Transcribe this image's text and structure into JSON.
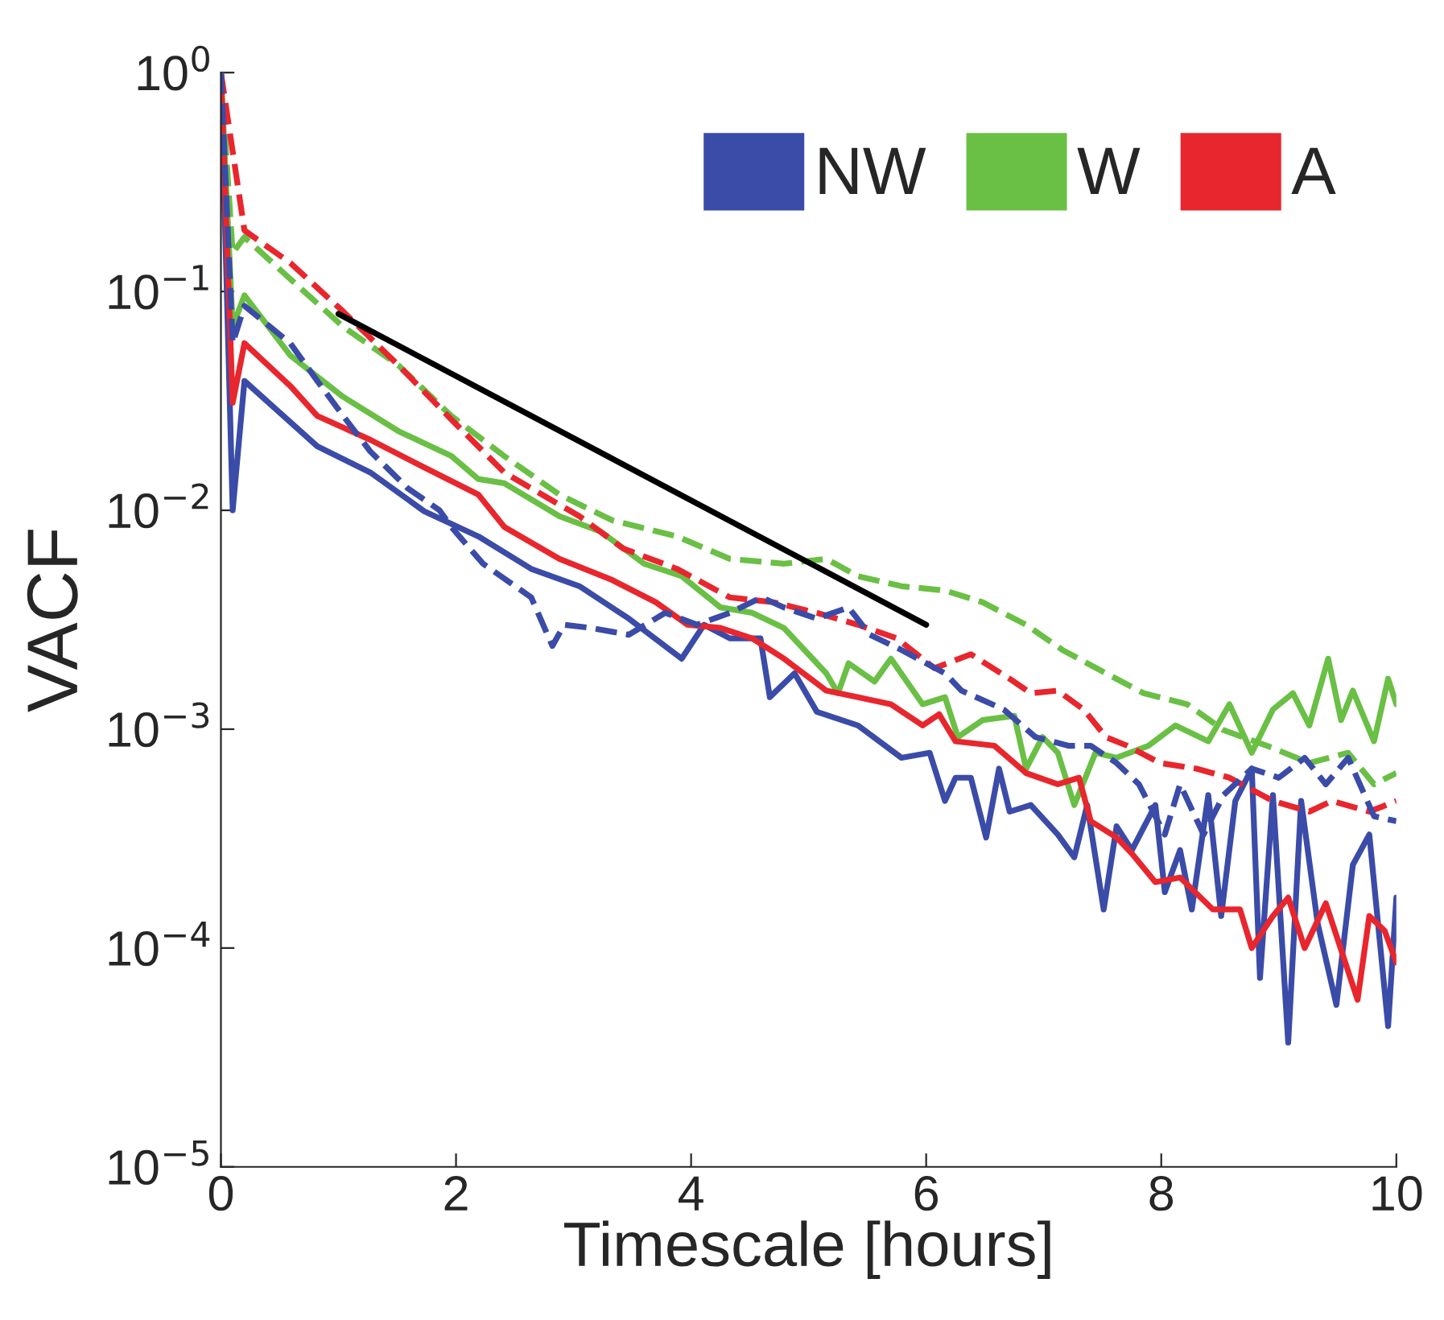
{
  "chart_data": {
    "type": "line",
    "xlabel": "Timescale [hours]",
    "ylabel": "VACF",
    "log": "y",
    "xlim": [
      0,
      10
    ],
    "xticks": [
      0,
      2,
      4,
      6,
      8,
      10
    ],
    "ylim": [
      1e-05,
      1
    ],
    "yticks": [
      {
        "value": 1e-05,
        "label": "10$^{−5}$"
      },
      {
        "value": 0.0001,
        "label": "10$^{−4}$"
      },
      {
        "value": 0.001,
        "label": "10$^{−3}$"
      },
      {
        "value": 0.01,
        "label": "10$^{−2}$"
      },
      {
        "value": 0.1,
        "label": "10$^{−1}$"
      },
      {
        "value": 1,
        "label": "10$^{0}$"
      }
    ],
    "grid": false,
    "legend": "top right",
    "series": [
      {
        "name": "NW",
        "color": "#3b4ba8",
        "line_style": "solid",
        "x": [
          0,
          0.1,
          0.2,
          0.82,
          1.27,
          1.73,
          2.19,
          2.64,
          3.05,
          3.47,
          3.92,
          4.11,
          4.33,
          4.59,
          4.67,
          4.88,
          5.07,
          5.42,
          5.79,
          6.03,
          6.16,
          6.25,
          6.38,
          6.51,
          6.62,
          6.71,
          6.89,
          7.12,
          7.26,
          7.37,
          7.51,
          7.62,
          7.75,
          7.95,
          8.03,
          8.16,
          8.26,
          8.4,
          8.51,
          8.63,
          8.77,
          8.84,
          8.95,
          9.08,
          9.19,
          9.33,
          9.49,
          9.63,
          9.77,
          9.93,
          10.0
        ],
        "values": [
          1,
          0.01,
          0.039,
          0.0196,
          0.0149,
          0.0099,
          0.0076,
          0.0054,
          0.0045,
          0.0032,
          0.0021,
          0.003,
          0.0026,
          0.0026,
          0.0014,
          0.0018,
          0.0012,
          0.00104,
          0.00074,
          0.00078,
          0.00047,
          0.0006,
          0.0006,
          0.00032,
          0.00066,
          0.00042,
          0.00045,
          0.00033,
          0.00026,
          0.00045,
          0.00015,
          0.00036,
          0.00028,
          0.00045,
          0.00018,
          0.00028,
          0.00015,
          0.0005,
          0.00014,
          0.00047,
          0.00066,
          7.3e-05,
          0.0005,
          3.7e-05,
          0.00047,
          0.00013,
          5.5e-05,
          0.00024,
          0.00033,
          4.4e-05,
          0.00017
        ]
      },
      {
        "name": "W",
        "color": "#6abf45",
        "line_style": "solid",
        "x": [
          0,
          0.1,
          0.2,
          0.59,
          1.04,
          1.51,
          1.96,
          2.19,
          2.41,
          2.88,
          3.23,
          3.6,
          3.92,
          4.25,
          4.52,
          4.79,
          5.15,
          5.25,
          5.34,
          5.56,
          5.7,
          5.97,
          6.16,
          6.27,
          6.48,
          6.75,
          6.85,
          6.99,
          7.12,
          7.26,
          7.44,
          7.62,
          7.89,
          8.12,
          8.4,
          8.58,
          8.77,
          8.95,
          9.12,
          9.26,
          9.42,
          9.53,
          9.63,
          9.81,
          9.93,
          10.0
        ],
        "values": [
          1,
          0.069,
          0.096,
          0.051,
          0.033,
          0.023,
          0.0177,
          0.0139,
          0.0133,
          0.0094,
          0.008,
          0.0057,
          0.005,
          0.0036,
          0.0034,
          0.0029,
          0.0018,
          0.00146,
          0.002,
          0.00165,
          0.0021,
          0.0013,
          0.0014,
          0.00092,
          0.0011,
          0.00115,
          0.00066,
          0.00092,
          0.00078,
          0.00045,
          0.00078,
          0.00074,
          0.00084,
          0.00104,
          0.00088,
          0.0013,
          0.00078,
          0.00123,
          0.00146,
          0.00104,
          0.0021,
          0.0011,
          0.0015,
          0.00088,
          0.0017,
          0.0013
        ]
      },
      {
        "name": "A",
        "color": "#e8262d",
        "line_style": "solid",
        "x": [
          0,
          0.1,
          0.2,
          0.59,
          0.82,
          1.27,
          1.73,
          2.19,
          2.41,
          2.88,
          3.33,
          3.7,
          3.97,
          4.25,
          4.52,
          4.79,
          5.15,
          5.42,
          5.7,
          5.97,
          6.11,
          6.25,
          6.58,
          6.85,
          7.12,
          7.3,
          7.4,
          7.62,
          7.75,
          7.95,
          8.16,
          8.44,
          8.67,
          8.77,
          8.95,
          9.08,
          9.22,
          9.4,
          9.67,
          9.77,
          9.9,
          10.0
        ],
        "values": [
          1,
          0.031,
          0.058,
          0.037,
          0.027,
          0.021,
          0.0157,
          0.0118,
          0.0084,
          0.006,
          0.0048,
          0.0038,
          0.003,
          0.0029,
          0.0026,
          0.0021,
          0.0015,
          0.0014,
          0.0013,
          0.00104,
          0.00117,
          0.00088,
          0.00084,
          0.00063,
          0.00056,
          0.0006,
          0.00038,
          0.00032,
          0.00027,
          0.0002,
          0.00021,
          0.00015,
          0.00015,
          0.0001,
          0.00014,
          0.00017,
          0.0001,
          0.00016,
          5.8e-05,
          0.00014,
          0.00012,
          8.6e-05
        ]
      },
      {
        "color": "#6abf45",
        "line_style": "dashed",
        "x": [
          0,
          0.1,
          0.2,
          0.59,
          1.04,
          1.51,
          1.96,
          2.41,
          2.88,
          3.33,
          3.88,
          4.33,
          4.79,
          5.15,
          5.42,
          5.79,
          6.16,
          6.48,
          6.85,
          7.16,
          7.53,
          7.85,
          8.22,
          8.53,
          8.9,
          9.26,
          9.59,
          9.81,
          10.0
        ],
        "values": [
          1,
          0.15,
          0.177,
          0.114,
          0.069,
          0.046,
          0.027,
          0.0177,
          0.0118,
          0.009,
          0.0076,
          0.006,
          0.0057,
          0.006,
          0.005,
          0.0045,
          0.0043,
          0.0038,
          0.003,
          0.0023,
          0.0018,
          0.00146,
          0.0013,
          0.00099,
          0.00084,
          0.0007,
          0.00078,
          0.00056,
          0.00063
        ]
      },
      {
        "color": "#e8262d",
        "line_style": "dashed",
        "x": [
          0,
          0.2,
          0.59,
          1.04,
          1.51,
          1.96,
          2.41,
          2.88,
          3.05,
          3.42,
          3.88,
          4.33,
          4.7,
          5.07,
          5.42,
          5.75,
          6.07,
          6.38,
          6.71,
          6.89,
          7.12,
          7.34,
          7.53,
          7.71,
          7.99,
          8.3,
          8.58,
          8.95,
          9.26,
          9.45,
          9.77,
          10.0
        ],
        "values": [
          1,
          0.19,
          0.135,
          0.081,
          0.046,
          0.026,
          0.0149,
          0.0106,
          0.0094,
          0.0067,
          0.0054,
          0.004,
          0.0038,
          0.0034,
          0.003,
          0.0026,
          0.0019,
          0.0022,
          0.0017,
          0.00146,
          0.0015,
          0.00123,
          0.00092,
          0.00084,
          0.0007,
          0.00066,
          0.0006,
          0.00047,
          0.00042,
          0.00047,
          0.00042,
          0.00047
        ]
      },
      {
        "color": "#3b4ba8",
        "line_style": "dashed",
        "x": [
          0,
          0.1,
          0.2,
          0.59,
          0.82,
          1.04,
          1.27,
          1.59,
          1.86,
          1.96,
          2.23,
          2.64,
          2.82,
          2.92,
          3.15,
          3.47,
          3.78,
          4.05,
          4.33,
          4.6,
          4.79,
          5.07,
          5.34,
          5.52,
          5.79,
          6.16,
          6.3,
          6.66,
          6.93,
          7.21,
          7.4,
          7.62,
          7.81,
          8.03,
          8.16,
          8.36,
          8.53,
          8.77,
          9.0,
          9.22,
          9.4,
          9.59,
          9.81,
          10.0
        ],
        "values": [
          1,
          0.058,
          0.086,
          0.058,
          0.039,
          0.027,
          0.0186,
          0.0126,
          0.01,
          0.0084,
          0.0057,
          0.004,
          0.0024,
          0.003,
          0.0029,
          0.0027,
          0.0034,
          0.003,
          0.0034,
          0.004,
          0.0036,
          0.0032,
          0.0036,
          0.0027,
          0.0023,
          0.0018,
          0.0015,
          0.00123,
          0.00092,
          0.00084,
          0.00084,
          0.0007,
          0.00056,
          0.00033,
          0.00056,
          0.00033,
          0.0005,
          0.00066,
          0.0006,
          0.00074,
          0.00056,
          0.00074,
          0.0004,
          0.00038
        ]
      },
      {
        "color": "#000000",
        "line_style": "solid",
        "x": [
          1,
          6
        ],
        "values": [
          0.079,
          0.003
        ]
      }
    ]
  }
}
